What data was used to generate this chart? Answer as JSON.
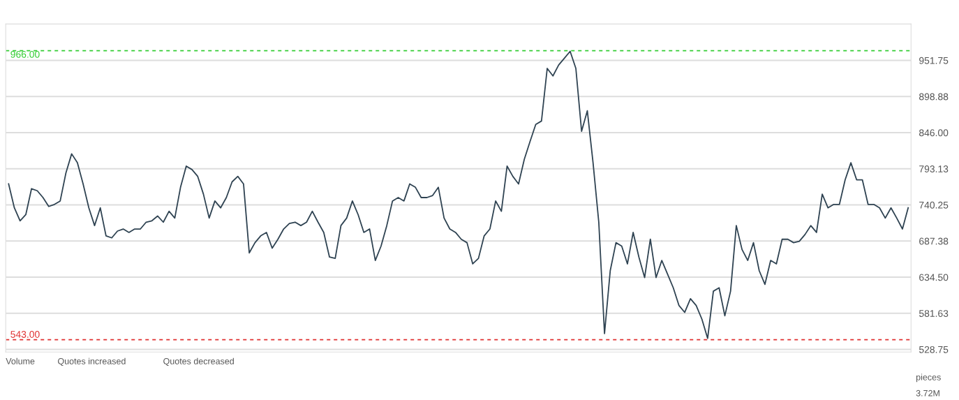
{
  "chart_data": {
    "type": "line",
    "categories": [
      null,
      null,
      null,
      null,
      null,
      null,
      null,
      null,
      null,
      null,
      null,
      null,
      null,
      null,
      null,
      null,
      null,
      null,
      null,
      null,
      null,
      null,
      null,
      null,
      null,
      null,
      null,
      null,
      null,
      null,
      null,
      null,
      null,
      null,
      null,
      null,
      null,
      null,
      null,
      null,
      null,
      null,
      null,
      null,
      null,
      null,
      null,
      null,
      null,
      null,
      null,
      null,
      null,
      null,
      null,
      null,
      null,
      null,
      null,
      null,
      null,
      null,
      null,
      null,
      null,
      null,
      null,
      null,
      null,
      null,
      null,
      null,
      null,
      null,
      null,
      null,
      null,
      null,
      null,
      null,
      null,
      null,
      null,
      null,
      null,
      null,
      null,
      null,
      null,
      null,
      null,
      null,
      null,
      null,
      null,
      null,
      null,
      null,
      null,
      null,
      null,
      null,
      null,
      null,
      null,
      null,
      null,
      null,
      null,
      null,
      null,
      null,
      null,
      null,
      null,
      null,
      null,
      null,
      null,
      null,
      null,
      null,
      null,
      null,
      null,
      null,
      null,
      null,
      null,
      null,
      null,
      null,
      null,
      null,
      null,
      null,
      null,
      null,
      null,
      null,
      null,
      null,
      null,
      null,
      null,
      null,
      null,
      null,
      null,
      null,
      null,
      null,
      null,
      null,
      null,
      null,
      null,
      null
    ],
    "series": [
      {
        "color": "#2f4352",
        "values": [
          771,
          736,
          717,
          726,
          764,
          761,
          751,
          738,
          741,
          746,
          787,
          815,
          802,
          771,
          736,
          710,
          736,
          695,
          692,
          702,
          705,
          700,
          705,
          705,
          715,
          717,
          724,
          715,
          731,
          721,
          766,
          797,
          792,
          782,
          756,
          721,
          746,
          736,
          751,
          774,
          782,
          771,
          670,
          685,
          695,
          700,
          677,
          690,
          705,
          713,
          715,
          710,
          715,
          731,
          715,
          700,
          664,
          662,
          710,
          721,
          746,
          726,
          700,
          705,
          659,
          680,
          710,
          746,
          751,
          746,
          771,
          766,
          751,
          751,
          754,
          766,
          721,
          705,
          700,
          690,
          685,
          654,
          662,
          695,
          705,
          746,
          731,
          797,
          782,
          771,
          807,
          833,
          858,
          863,
          940,
          929,
          945,
          955,
          965,
          940,
          848,
          878,
          802,
          715,
          552,
          644,
          685,
          680,
          654,
          700,
          664,
          634,
          690,
          634,
          659,
          639,
          619,
          593,
          583,
          603,
          593,
          573,
          545,
          614,
          619,
          578,
          614,
          710,
          675,
          659,
          685,
          644,
          624,
          659,
          654,
          690,
          690,
          685,
          687,
          697,
          710,
          700,
          756,
          736,
          741,
          741,
          777,
          802,
          777,
          777,
          741,
          741,
          736,
          721,
          736,
          721,
          705,
          736
        ]
      }
    ],
    "ylim": [
      525,
      1005
    ],
    "yticks": [
      {
        "value": 528.75,
        "label": "528.75"
      },
      {
        "value": 581.63,
        "label": "581.63"
      },
      {
        "value": 634.5,
        "label": "634.50"
      },
      {
        "value": 687.38,
        "label": "687.38"
      },
      {
        "value": 740.25,
        "label": "740.25"
      },
      {
        "value": 793.13,
        "label": "793.13"
      },
      {
        "value": 846,
        "label": "846.00"
      },
      {
        "value": 898.88,
        "label": "898.88"
      },
      {
        "value": 951.75,
        "label": "951.75"
      }
    ],
    "ref_lines": [
      {
        "axis": "y",
        "value": 966,
        "label": "966.00",
        "color": "#33cc33",
        "line_style": "dashed"
      },
      {
        "axis": "y",
        "value": 543,
        "label": "543.00",
        "color": "#e03030",
        "line_style": "dashed"
      }
    ],
    "grid": "y",
    "annotations": [
      "Volume",
      "Quotes increased",
      "Quotes decreased",
      "pieces",
      "3.72M"
    ]
  }
}
